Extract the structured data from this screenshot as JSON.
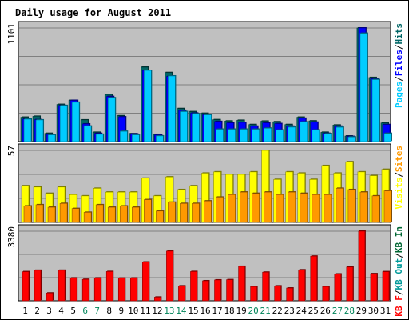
{
  "chart_data": {
    "type": "bar",
    "title": "Daily usage for August 2011",
    "days": [
      "1",
      "2",
      "3",
      "4",
      "5",
      "6",
      "7",
      "8",
      "9",
      "10",
      "11",
      "12",
      "13",
      "14",
      "15",
      "16",
      "17",
      "18",
      "19",
      "20",
      "21",
      "22",
      "23",
      "24",
      "25",
      "26",
      "27",
      "28",
      "29",
      "30",
      "31"
    ],
    "weekend_days": [
      "6",
      "7",
      "13",
      "14",
      "20",
      "21",
      "27",
      "28"
    ],
    "colors": {
      "title": "#0000cc",
      "plot_bg": "#c0c0c0",
      "pages": "#00ccff",
      "files": "#0000ff",
      "hits": "#006666",
      "visits": "#ffff00",
      "sites": "#ff9900",
      "kb_in": "#006633",
      "kb_out": "#009999",
      "kbf": "#ff0000",
      "weekday_label": "#000000",
      "weekend_label": "#00855a"
    },
    "panels": {
      "hits": {
        "ymax_label": "1101",
        "ymax": 1101,
        "legend": [
          {
            "text": "Pages",
            "color": "#00ccff"
          },
          {
            "text": "/",
            "color": "#000000"
          },
          {
            "text": "Files",
            "color": "#0000ff"
          },
          {
            "text": "/",
            "color": "#000000"
          },
          {
            "text": "Hits",
            "color": "#006666"
          }
        ],
        "series": [
          {
            "name": "Hits",
            "values": [
              236,
              245,
              80,
              360,
              399,
              210,
              90,
              456,
              250,
              76,
              721,
              70,
              669,
              320,
              290,
              274,
              212,
              199,
              206,
              165,
              198,
              192,
              165,
              236,
              200,
              90,
              160,
              54,
              1101,
              621,
              181
            ]
          },
          {
            "name": "Files",
            "values": [
              217,
              212,
              70,
              350,
              399,
              171,
              80,
              437,
              240,
              74,
              690,
              65,
              631,
              303,
              276,
              260,
              195,
              181,
              186,
              149,
              181,
              174,
              149,
              226,
              188,
              80,
              149,
              50,
              1101,
              609,
              165
            ]
          },
          {
            "name": "Pages",
            "values": [
              217,
              210,
              65,
              350,
              381,
              150,
              71,
              425,
              100,
              65,
              690,
              55,
              636,
              291,
              270,
              259,
              120,
              120,
              120,
              120,
              130,
              112,
              140,
              190,
              112,
              76,
              139,
              45,
              1050,
              601,
              80
            ]
          }
        ]
      },
      "visits": {
        "ymax_label": "57",
        "ymax": 57,
        "legend": [
          {
            "text": "Visits",
            "color": "#ffff00"
          },
          {
            "text": "/",
            "color": "#000000"
          },
          {
            "text": "Sites",
            "color": "#ff9900"
          }
        ],
        "series": [
          {
            "name": "Visits",
            "values": [
              29,
              28,
              23,
              28,
              22,
              21,
              27,
              24,
              24,
              24,
              35,
              21,
              36,
              26,
              29,
              39,
              40,
              38,
              38,
              40,
              57,
              34,
              40,
              39,
              34,
              45,
              39,
              48,
              40,
              37,
              42
            ]
          },
          {
            "name": "Sites",
            "values": [
              13,
              14,
              12,
              15,
              11,
              8,
              14,
              12,
              13,
              12,
              18,
              9,
              16,
              15,
              15,
              17,
              20,
              22,
              24,
              23,
              24,
              22,
              24,
              23,
              22,
              22,
              27,
              26,
              24,
              21,
              25
            ]
          }
        ]
      },
      "kbytes": {
        "ymax_label": "3380",
        "ymax": 3380,
        "legend": [
          {
            "text": "KB F",
            "color": "#ff0000"
          },
          {
            "text": "/",
            "color": "#000000"
          },
          {
            "text": "KB Out",
            "color": "#009999"
          },
          {
            "text": "/",
            "color": "#000000"
          },
          {
            "text": "KB In",
            "color": "#006633"
          }
        ],
        "series": [
          {
            "name": "KB F",
            "values": [
              1415,
              1482,
              379,
              1483,
              1111,
              1042,
              1111,
              1423,
              1104,
              1109,
              1884,
              180,
              2414,
              724,
              1422,
              972,
              1013,
              1025,
              1673,
              691,
              1390,
              724,
              620,
              1503,
              2169,
              691,
              1303,
              1640,
              3380,
              1317,
              1414
            ]
          }
        ]
      }
    }
  }
}
